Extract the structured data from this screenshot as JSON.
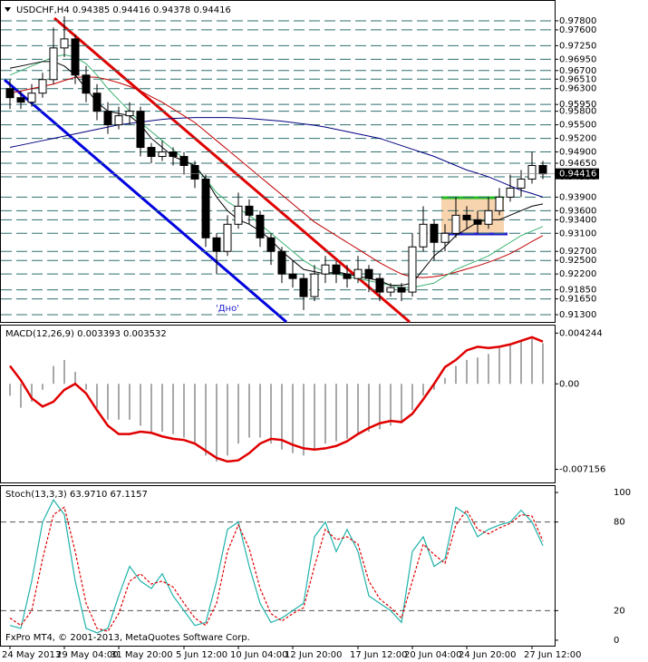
{
  "chart_data": [
    {
      "type": "candlestick",
      "title": "USDCHF,H4  0.94385 0.94416 0.94378 0.94416",
      "annotation": "'Дно'",
      "categories": [
        "24 May 2013",
        null,
        null,
        null,
        null,
        "29 May 04:00",
        null,
        null,
        null,
        null,
        "31 May 20:00",
        null,
        null,
        null,
        null,
        null,
        "5 Jun 12:00",
        null,
        null,
        null,
        null,
        "10 Jun 04:00",
        null,
        null,
        null,
        null,
        "12 Jun 20:00",
        null,
        null,
        null,
        null,
        null,
        "17 Jun 12:00",
        null,
        null,
        null,
        null,
        "20 Jun 04:00",
        null,
        null,
        null,
        null,
        "24 Jun 20:00",
        null,
        null,
        null,
        null,
        null,
        "27 Jun 12:00",
        null
      ],
      "open": [
        0.963,
        0.961,
        0.96,
        0.962,
        0.965,
        0.972,
        0.974,
        0.966,
        0.962,
        0.958,
        0.955,
        0.957,
        0.958,
        0.95,
        0.948,
        0.949,
        0.948,
        0.946,
        0.943,
        0.93,
        0.927,
        0.933,
        0.937,
        0.935,
        0.93,
        0.927,
        0.922,
        0.921,
        0.917,
        0.922,
        0.924,
        0.922,
        0.921,
        0.923,
        0.921,
        0.918,
        0.919,
        0.918,
        0.928,
        0.933,
        0.929,
        0.931,
        0.935,
        0.934,
        0.933,
        0.936,
        0.939,
        0.941,
        0.943,
        0.946
      ],
      "high": [
        0.965,
        0.9625,
        0.964,
        0.9665,
        0.9765,
        0.979,
        0.975,
        0.968,
        0.964,
        0.96,
        0.959,
        0.96,
        0.959,
        0.951,
        0.9515,
        0.95,
        0.949,
        0.947,
        0.944,
        0.931,
        0.935,
        0.94,
        0.9385,
        0.936,
        0.931,
        0.928,
        0.925,
        0.922,
        0.924,
        0.926,
        0.925,
        0.924,
        0.926,
        0.924,
        0.922,
        0.92,
        0.92,
        0.931,
        0.937,
        0.934,
        0.933,
        0.939,
        0.937,
        0.936,
        0.939,
        0.941,
        0.944,
        0.945,
        0.949,
        0.947
      ],
      "low": [
        0.9585,
        0.9585,
        0.959,
        0.961,
        0.964,
        0.97,
        0.964,
        0.96,
        0.956,
        0.953,
        0.954,
        0.955,
        0.948,
        0.9465,
        0.947,
        0.946,
        0.944,
        0.941,
        0.928,
        0.922,
        0.926,
        0.932,
        0.933,
        0.928,
        0.924,
        0.92,
        0.919,
        0.914,
        0.916,
        0.92,
        0.92,
        0.919,
        0.92,
        0.918,
        0.916,
        0.917,
        0.916,
        0.917,
        0.927,
        0.925,
        0.927,
        0.93,
        0.932,
        0.931,
        0.932,
        0.935,
        0.938,
        0.939,
        0.942,
        0.943
      ],
      "close": [
        0.961,
        0.96,
        0.962,
        0.965,
        0.972,
        0.974,
        0.966,
        0.962,
        0.958,
        0.955,
        0.957,
        0.958,
        0.95,
        0.948,
        0.949,
        0.948,
        0.946,
        0.943,
        0.93,
        0.927,
        0.933,
        0.937,
        0.935,
        0.93,
        0.927,
        0.922,
        0.921,
        0.917,
        0.922,
        0.924,
        0.922,
        0.921,
        0.923,
        0.921,
        0.918,
        0.919,
        0.918,
        0.928,
        0.933,
        0.929,
        0.931,
        0.935,
        0.934,
        0.933,
        0.936,
        0.939,
        0.941,
        0.943,
        0.946,
        0.94416
      ],
      "series": [
        {
          "color": "#000080",
          "values": [
            0.95,
            0.9505,
            0.951,
            0.9515,
            0.952,
            0.9525,
            0.953,
            0.9535,
            0.954,
            0.9545,
            0.955,
            0.9553,
            0.9556,
            0.9559,
            0.9562,
            0.9564,
            0.9565,
            0.9566,
            0.9566,
            0.9566,
            0.9566,
            0.9565,
            0.9564,
            0.9562,
            0.956,
            0.9558,
            0.9555,
            0.9552,
            0.9549,
            0.9545,
            0.954,
            0.9535,
            0.953,
            0.9525,
            0.952,
            0.9512,
            0.9504,
            0.9496,
            0.9488,
            0.948,
            0.947,
            0.946,
            0.945,
            0.9443,
            0.9435,
            0.9425,
            0.9415,
            0.9405,
            0.9398,
            0.939
          ]
        },
        {
          "color": "#c00000",
          "values": [
            0.962,
            0.9625,
            0.963,
            0.9635,
            0.964,
            0.9648,
            0.9655,
            0.9656,
            0.9655,
            0.965,
            0.9643,
            0.9635,
            0.9625,
            0.9612,
            0.96,
            0.9585,
            0.957,
            0.9555,
            0.9535,
            0.9515,
            0.9495,
            0.9475,
            0.9455,
            0.9435,
            0.9415,
            0.9395,
            0.9375,
            0.9355,
            0.9335,
            0.932,
            0.9305,
            0.929,
            0.9275,
            0.926,
            0.9245,
            0.9232,
            0.922,
            0.9213,
            0.9212,
            0.9214,
            0.9218,
            0.9224,
            0.9231,
            0.9238,
            0.9246,
            0.9255,
            0.9265,
            0.9278,
            0.9292,
            0.9305
          ]
        },
        {
          "color": "#3cb371",
          "values": [
            0.966,
            0.967,
            0.968,
            0.969,
            0.97,
            0.9705,
            0.97,
            0.9685,
            0.966,
            0.963,
            0.9605,
            0.958,
            0.9555,
            0.9535,
            0.9515,
            0.9495,
            0.9475,
            0.9455,
            0.943,
            0.94,
            0.938,
            0.9365,
            0.935,
            0.933,
            0.931,
            0.929,
            0.927,
            0.925,
            0.9235,
            0.9225,
            0.922,
            0.9215,
            0.921,
            0.9205,
            0.92,
            0.9195,
            0.919,
            0.919,
            0.9195,
            0.92,
            0.9215,
            0.923,
            0.924,
            0.925,
            0.926,
            0.9275,
            0.929,
            0.9305,
            0.9315,
            0.9325
          ]
        },
        {
          "color": "#000000",
          "values": [
            0.9675,
            0.968,
            0.9685,
            0.969,
            0.969,
            0.968,
            0.966,
            0.963,
            0.96,
            0.958,
            0.9575,
            0.957,
            0.955,
            0.952,
            0.95,
            0.948,
            0.947,
            0.946,
            0.943,
            0.939,
            0.936,
            0.934,
            0.933,
            0.9315,
            0.9295,
            0.927,
            0.925,
            0.923,
            0.9225,
            0.922,
            0.9225,
            0.922,
            0.9215,
            0.921,
            0.9205,
            0.9195,
            0.9195,
            0.92,
            0.923,
            0.926,
            0.928,
            0.9305,
            0.932,
            0.9335,
            0.934,
            0.934,
            0.935,
            0.936,
            0.937,
            0.9375
          ]
        }
      ],
      "ylim": [
        0.9114,
        0.9816
      ],
      "yticks": [
        {
          "value": 0.978,
          "label": "0.97800"
        },
        {
          "value": 0.976,
          "label": "0.97600"
        },
        {
          "value": 0.9725,
          "label": "0.97250"
        },
        {
          "value": 0.9695,
          "label": "0.96950"
        },
        {
          "value": 0.967,
          "label": "0.96700"
        },
        {
          "value": 0.9651,
          "label": "0.96510"
        },
        {
          "value": 0.963,
          "label": "0.96300"
        },
        {
          "value": 0.9595,
          "label": "0.95950"
        },
        {
          "value": 0.958,
          "label": "0.95800"
        },
        {
          "value": 0.955,
          "label": "0.95500"
        },
        {
          "value": 0.952,
          "label": "0.95200"
        },
        {
          "value": 0.949,
          "label": "0.94900"
        },
        {
          "value": 0.9465,
          "label": "0.94650"
        },
        {
          "value": 0.9435,
          "label": "0.94350"
        },
        {
          "value": 0.939,
          "label": "0.93900"
        },
        {
          "value": 0.936,
          "label": "0.93600"
        },
        {
          "value": 0.934,
          "label": "0.93400"
        },
        {
          "value": 0.931,
          "label": "0.93100"
        },
        {
          "value": 0.927,
          "label": "0.92700"
        },
        {
          "value": 0.925,
          "label": "0.92500"
        },
        {
          "value": 0.922,
          "label": "0.92200"
        },
        {
          "value": 0.9185,
          "label": "0.91850"
        },
        {
          "value": 0.9165,
          "label": "0.91650"
        },
        {
          "value": 0.913,
          "label": "0.91300"
        }
      ],
      "price_marker": {
        "value": 0.94416,
        "label": "0.94416"
      },
      "grid": true
    },
    {
      "type": "macd",
      "title": "MACD(12,26,9) 0.003393 0.003532",
      "color": "#a8a8a8",
      "signal_color": "#e00000",
      "values": [
        -0.001,
        -0.002,
        -0.0015,
        -0.0005,
        0.0015,
        0.002,
        0.001,
        -0.0005,
        -0.002,
        -0.003,
        -0.003,
        -0.003,
        -0.0035,
        -0.004,
        -0.004,
        -0.0042,
        -0.0045,
        -0.005,
        -0.006,
        -0.0065,
        -0.006,
        -0.005,
        -0.0045,
        -0.0045,
        -0.005,
        -0.0055,
        -0.0058,
        -0.006,
        -0.0055,
        -0.005,
        -0.0048,
        -0.0046,
        -0.0042,
        -0.004,
        -0.0038,
        -0.0035,
        -0.0033,
        -0.0022,
        -0.001,
        -0.0005,
        0.0005,
        0.0015,
        0.002,
        0.0022,
        0.0025,
        0.003,
        0.0033,
        0.0036,
        0.0038,
        0.003393
      ],
      "signal": [
        0.0015,
        0.0003,
        -0.0012,
        -0.0019,
        -0.0015,
        -0.0005,
        0.0,
        -0.0008,
        -0.0022,
        -0.0035,
        -0.0042,
        -0.0042,
        -0.004,
        -0.0041,
        -0.0044,
        -0.0046,
        -0.0047,
        -0.005,
        -0.0056,
        -0.0062,
        -0.0065,
        -0.0064,
        -0.0058,
        -0.005,
        -0.0046,
        -0.0047,
        -0.0051,
        -0.0054,
        -0.0055,
        -0.0054,
        -0.0052,
        -0.0048,
        -0.0042,
        -0.0037,
        -0.0033,
        -0.0031,
        -0.0032,
        -0.0025,
        -0.0013,
        0.0,
        0.0014,
        0.002,
        0.0028,
        0.0031,
        0.003,
        0.0031,
        0.0033,
        0.0036,
        0.0039,
        0.003532
      ],
      "ylim": [
        -0.0081,
        0.0048
      ],
      "yticks": [
        {
          "value": 0.004244,
          "label": "0.004244"
        },
        {
          "value": 0,
          "label": "0.00"
        },
        {
          "value": -0.007156,
          "label": "-0.007156"
        }
      ]
    },
    {
      "type": "stochastic",
      "title": "Stoch(13,3,3) 63.9710 67.1157",
      "footer": "FxPro MT4, © 2001-2013, MetaQuotes Software Corp.",
      "series": [
        {
          "color": "#20b2aa",
          "values": [
            10,
            8,
            40,
            80,
            95,
            85,
            40,
            8,
            5,
            8,
            30,
            50,
            40,
            35,
            45,
            30,
            20,
            10,
            12,
            40,
            75,
            80,
            50,
            25,
            12,
            15,
            20,
            25,
            70,
            80,
            60,
            75,
            60,
            30,
            25,
            20,
            12,
            60,
            70,
            50,
            55,
            90,
            85,
            70,
            75,
            78,
            80,
            88,
            80,
            63.971
          ]
        },
        {
          "color": "#e00000",
          "dashed": true,
          "values": [
            15,
            10,
            20,
            55,
            85,
            90,
            60,
            25,
            8,
            6,
            18,
            40,
            45,
            38,
            40,
            36,
            25,
            15,
            10,
            25,
            60,
            78,
            62,
            35,
            18,
            13,
            18,
            22,
            50,
            75,
            68,
            70,
            65,
            40,
            28,
            22,
            15,
            40,
            65,
            58,
            52,
            78,
            88,
            75,
            72,
            76,
            79,
            85,
            84,
            67.1157
          ]
        }
      ],
      "ylim": [
        -3.7,
        103.1
      ],
      "yticks": [
        100,
        80,
        20,
        0
      ]
    }
  ]
}
